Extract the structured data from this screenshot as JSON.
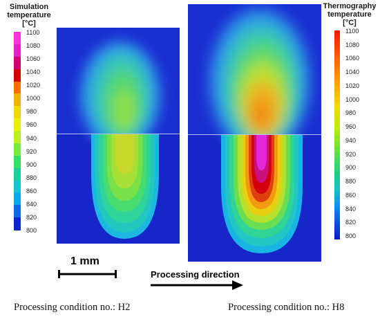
{
  "left_legend": {
    "title": [
      "Simulation",
      "temperature",
      "[°C]"
    ],
    "ticks": [
      "1100",
      "1080",
      "1060",
      "1040",
      "1020",
      "1000",
      "980",
      "960",
      "940",
      "920",
      "900",
      "880",
      "860",
      "840",
      "820",
      "800"
    ],
    "colors": [
      "#ff2fe0",
      "#dd20cc",
      "#d1006e",
      "#d90000",
      "#f07000",
      "#f0b400",
      "#eeda00",
      "#e8f000",
      "#b8f01e",
      "#7ae842",
      "#3cdc64",
      "#20cc9c",
      "#18c0d0",
      "#10a8ec",
      "#0c6cdc",
      "#0a28c8"
    ]
  },
  "right_legend": {
    "title": [
      "Thermography",
      "temperature",
      "[°C]"
    ],
    "ticks": [
      "1100",
      "1080",
      "1060",
      "1040",
      "1020",
      "1000",
      "980",
      "960",
      "940",
      "920",
      "900",
      "880",
      "860",
      "840",
      "820",
      "800"
    ]
  },
  "scale_bar": {
    "label": "1 mm"
  },
  "direction": {
    "label": "Processing direction"
  },
  "captions": {
    "left": "Processing condition no.: H2",
    "right": "Processing condition no.: H8"
  }
}
